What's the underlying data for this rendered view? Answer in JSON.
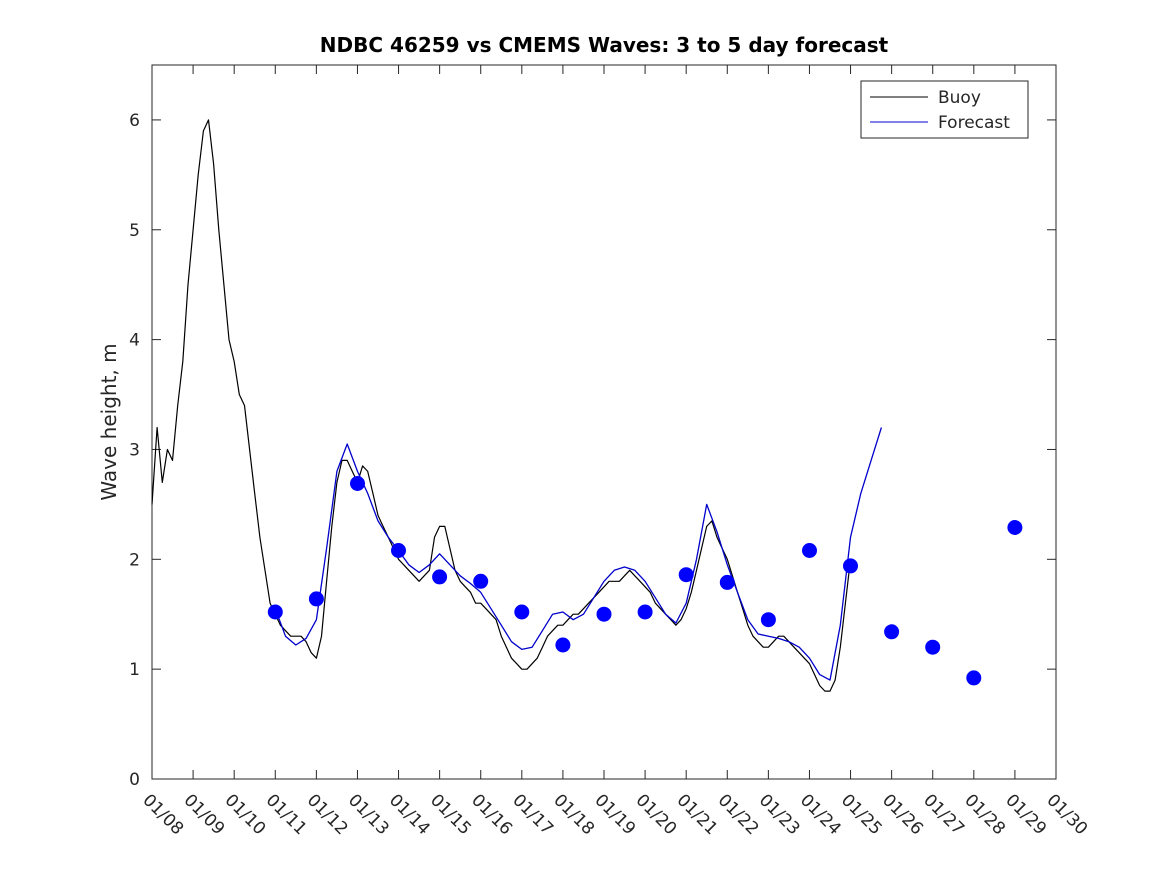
{
  "chart_data": {
    "type": "line",
    "title": "NDBC 46259 vs CMEMS Waves: 3 to 5 day forecast",
    "xlabel": "",
    "ylabel": "Wave height, m",
    "x_unit": "date",
    "xlim": [
      "01/08",
      "01/30"
    ],
    "ylim": [
      0,
      6.5
    ],
    "x_ticks": [
      "01/08",
      "01/09",
      "01/10",
      "01/11",
      "01/12",
      "01/13",
      "01/14",
      "01/15",
      "01/16",
      "01/17",
      "01/18",
      "01/19",
      "01/20",
      "01/21",
      "01/22",
      "01/23",
      "01/24",
      "01/25",
      "01/26",
      "01/27",
      "01/28",
      "01/29",
      "01/30"
    ],
    "y_ticks": [
      0,
      1,
      2,
      3,
      4,
      5,
      6
    ],
    "legend": {
      "position": "top-right",
      "entries": [
        "Buoy",
        "Forecast"
      ]
    },
    "colors": {
      "buoy": "#000000",
      "forecast": "#0000cc",
      "markers": "#0000ff"
    },
    "series": [
      {
        "name": "Buoy",
        "points": [
          [
            "01/08 00:00",
            2.5
          ],
          [
            "01/08 03:00",
            3.2
          ],
          [
            "01/08 06:00",
            2.7
          ],
          [
            "01/08 09:00",
            3.0
          ],
          [
            "01/08 12:00",
            2.9
          ],
          [
            "01/08 15:00",
            3.4
          ],
          [
            "01/08 18:00",
            3.8
          ],
          [
            "01/08 21:00",
            4.5
          ],
          [
            "01/09 00:00",
            5.0
          ],
          [
            "01/09 03:00",
            5.5
          ],
          [
            "01/09 06:00",
            5.9
          ],
          [
            "01/09 09:00",
            6.0
          ],
          [
            "01/09 12:00",
            5.6
          ],
          [
            "01/09 15:00",
            5.0
          ],
          [
            "01/09 18:00",
            4.5
          ],
          [
            "01/09 21:00",
            4.0
          ],
          [
            "01/10 00:00",
            3.8
          ],
          [
            "01/10 03:00",
            3.5
          ],
          [
            "01/10 06:00",
            3.4
          ],
          [
            "01/10 09:00",
            3.0
          ],
          [
            "01/10 12:00",
            2.6
          ],
          [
            "01/10 15:00",
            2.2
          ],
          [
            "01/10 18:00",
            1.9
          ],
          [
            "01/10 21:00",
            1.6
          ],
          [
            "01/11 00:00",
            1.5
          ],
          [
            "01/11 03:00",
            1.4
          ],
          [
            "01/11 06:00",
            1.35
          ],
          [
            "01/11 09:00",
            1.3
          ],
          [
            "01/11 12:00",
            1.3
          ],
          [
            "01/11 15:00",
            1.3
          ],
          [
            "01/11 18:00",
            1.25
          ],
          [
            "01/11 21:00",
            1.15
          ],
          [
            "01/12 00:00",
            1.1
          ],
          [
            "01/12 03:00",
            1.3
          ],
          [
            "01/12 06:00",
            1.8
          ],
          [
            "01/12 09:00",
            2.3
          ],
          [
            "01/12 12:00",
            2.7
          ],
          [
            "01/12 15:00",
            2.9
          ],
          [
            "01/12 18:00",
            2.9
          ],
          [
            "01/12 21:00",
            2.8
          ],
          [
            "01/13 00:00",
            2.7
          ],
          [
            "01/13 03:00",
            2.85
          ],
          [
            "01/13 06:00",
            2.8
          ],
          [
            "01/13 09:00",
            2.6
          ],
          [
            "01/13 12:00",
            2.4
          ],
          [
            "01/13 15:00",
            2.3
          ],
          [
            "01/13 18:00",
            2.2
          ],
          [
            "01/13 21:00",
            2.1
          ],
          [
            "01/14 00:00",
            2.0
          ],
          [
            "01/14 03:00",
            1.95
          ],
          [
            "01/14 06:00",
            1.9
          ],
          [
            "01/14 09:00",
            1.85
          ],
          [
            "01/14 12:00",
            1.8
          ],
          [
            "01/14 15:00",
            1.85
          ],
          [
            "01/14 18:00",
            1.9
          ],
          [
            "01/14 21:00",
            2.2
          ],
          [
            "01/15 00:00",
            2.3
          ],
          [
            "01/15 03:00",
            2.3
          ],
          [
            "01/15 06:00",
            2.1
          ],
          [
            "01/15 09:00",
            1.9
          ],
          [
            "01/15 12:00",
            1.8
          ],
          [
            "01/15 15:00",
            1.75
          ],
          [
            "01/15 18:00",
            1.7
          ],
          [
            "01/15 21:00",
            1.6
          ],
          [
            "01/16 00:00",
            1.6
          ],
          [
            "01/16 03:00",
            1.55
          ],
          [
            "01/16 06:00",
            1.5
          ],
          [
            "01/16 09:00",
            1.45
          ],
          [
            "01/16 12:00",
            1.3
          ],
          [
            "01/16 15:00",
            1.2
          ],
          [
            "01/16 18:00",
            1.1
          ],
          [
            "01/16 21:00",
            1.05
          ],
          [
            "01/17 00:00",
            1.0
          ],
          [
            "01/17 03:00",
            1.0
          ],
          [
            "01/17 06:00",
            1.05
          ],
          [
            "01/17 09:00",
            1.1
          ],
          [
            "01/17 12:00",
            1.2
          ],
          [
            "01/17 15:00",
            1.3
          ],
          [
            "01/17 18:00",
            1.35
          ],
          [
            "01/17 21:00",
            1.4
          ],
          [
            "01/18 00:00",
            1.4
          ],
          [
            "01/18 03:00",
            1.45
          ],
          [
            "01/18 06:00",
            1.5
          ],
          [
            "01/18 09:00",
            1.5
          ],
          [
            "01/18 12:00",
            1.55
          ],
          [
            "01/18 15:00",
            1.6
          ],
          [
            "01/18 18:00",
            1.65
          ],
          [
            "01/18 21:00",
            1.7
          ],
          [
            "01/19 00:00",
            1.75
          ],
          [
            "01/19 03:00",
            1.8
          ],
          [
            "01/19 06:00",
            1.8
          ],
          [
            "01/19 09:00",
            1.8
          ],
          [
            "01/19 12:00",
            1.85
          ],
          [
            "01/19 15:00",
            1.9
          ],
          [
            "01/19 18:00",
            1.85
          ],
          [
            "01/19 21:00",
            1.8
          ],
          [
            "01/20 00:00",
            1.75
          ],
          [
            "01/20 03:00",
            1.7
          ],
          [
            "01/20 06:00",
            1.6
          ],
          [
            "01/20 09:00",
            1.55
          ],
          [
            "01/20 12:00",
            1.5
          ],
          [
            "01/20 15:00",
            1.45
          ],
          [
            "01/20 18:00",
            1.4
          ],
          [
            "01/20 21:00",
            1.45
          ],
          [
            "01/21 00:00",
            1.55
          ],
          [
            "01/21 03:00",
            1.7
          ],
          [
            "01/21 06:00",
            1.9
          ],
          [
            "01/21 09:00",
            2.1
          ],
          [
            "01/21 12:00",
            2.3
          ],
          [
            "01/21 15:00",
            2.35
          ],
          [
            "01/21 18:00",
            2.2
          ],
          [
            "01/21 21:00",
            2.1
          ],
          [
            "01/22 00:00",
            2.0
          ],
          [
            "01/22 03:00",
            1.85
          ],
          [
            "01/22 06:00",
            1.7
          ],
          [
            "01/22 09:00",
            1.55
          ],
          [
            "01/22 12:00",
            1.4
          ],
          [
            "01/22 15:00",
            1.3
          ],
          [
            "01/22 18:00",
            1.25
          ],
          [
            "01/22 21:00",
            1.2
          ],
          [
            "01/23 00:00",
            1.2
          ],
          [
            "01/23 03:00",
            1.25
          ],
          [
            "01/23 06:00",
            1.3
          ],
          [
            "01/23 09:00",
            1.3
          ],
          [
            "01/23 12:00",
            1.25
          ],
          [
            "01/23 15:00",
            1.2
          ],
          [
            "01/23 18:00",
            1.15
          ],
          [
            "01/23 21:00",
            1.1
          ],
          [
            "01/24 00:00",
            1.05
          ],
          [
            "01/24 03:00",
            0.95
          ],
          [
            "01/24 06:00",
            0.85
          ],
          [
            "01/24 09:00",
            0.8
          ],
          [
            "01/24 12:00",
            0.8
          ],
          [
            "01/24 15:00",
            0.9
          ],
          [
            "01/24 18:00",
            1.2
          ],
          [
            "01/24 21:00",
            1.6
          ],
          [
            "01/25 00:00",
            2.0
          ]
        ]
      },
      {
        "name": "Forecast",
        "points": [
          [
            "01/11 00:00",
            1.55
          ],
          [
            "01/11 06:00",
            1.3
          ],
          [
            "01/11 12:00",
            1.22
          ],
          [
            "01/11 18:00",
            1.28
          ],
          [
            "01/12 00:00",
            1.45
          ],
          [
            "01/12 06:00",
            2.1
          ],
          [
            "01/12 12:00",
            2.8
          ],
          [
            "01/12 18:00",
            3.05
          ],
          [
            "01/13 00:00",
            2.8
          ],
          [
            "01/13 06:00",
            2.6
          ],
          [
            "01/13 12:00",
            2.35
          ],
          [
            "01/13 18:00",
            2.2
          ],
          [
            "01/14 00:00",
            2.08
          ],
          [
            "01/14 06:00",
            1.95
          ],
          [
            "01/14 12:00",
            1.88
          ],
          [
            "01/14 18:00",
            1.95
          ],
          [
            "01/15 00:00",
            2.05
          ],
          [
            "01/15 06:00",
            1.95
          ],
          [
            "01/15 12:00",
            1.85
          ],
          [
            "01/15 18:00",
            1.78
          ],
          [
            "01/16 00:00",
            1.7
          ],
          [
            "01/16 06:00",
            1.55
          ],
          [
            "01/16 12:00",
            1.4
          ],
          [
            "01/16 18:00",
            1.25
          ],
          [
            "01/17 00:00",
            1.18
          ],
          [
            "01/17 06:00",
            1.2
          ],
          [
            "01/17 12:00",
            1.35
          ],
          [
            "01/17 18:00",
            1.5
          ],
          [
            "01/18 00:00",
            1.52
          ],
          [
            "01/18 06:00",
            1.45
          ],
          [
            "01/18 12:00",
            1.5
          ],
          [
            "01/18 18:00",
            1.65
          ],
          [
            "01/19 00:00",
            1.8
          ],
          [
            "01/19 06:00",
            1.9
          ],
          [
            "01/19 12:00",
            1.93
          ],
          [
            "01/19 18:00",
            1.9
          ],
          [
            "01/20 00:00",
            1.8
          ],
          [
            "01/20 06:00",
            1.65
          ],
          [
            "01/20 12:00",
            1.5
          ],
          [
            "01/20 18:00",
            1.42
          ],
          [
            "01/21 00:00",
            1.6
          ],
          [
            "01/21 06:00",
            2.0
          ],
          [
            "01/21 12:00",
            2.5
          ],
          [
            "01/21 18:00",
            2.25
          ],
          [
            "01/22 00:00",
            1.95
          ],
          [
            "01/22 06:00",
            1.7
          ],
          [
            "01/22 12:00",
            1.45
          ],
          [
            "01/22 18:00",
            1.32
          ],
          [
            "01/23 00:00",
            1.3
          ],
          [
            "01/23 06:00",
            1.28
          ],
          [
            "01/23 12:00",
            1.25
          ],
          [
            "01/23 18:00",
            1.2
          ],
          [
            "01/24 00:00",
            1.1
          ],
          [
            "01/24 06:00",
            0.95
          ],
          [
            "01/24 12:00",
            0.9
          ],
          [
            "01/24 18:00",
            1.4
          ],
          [
            "01/25 00:00",
            2.2
          ],
          [
            "01/25 06:00",
            2.6
          ],
          [
            "01/25 12:00",
            2.9
          ],
          [
            "01/25 18:00",
            3.2
          ]
        ]
      },
      {
        "name": "",
        "points": [
          [
            "01/11 00:00",
            1.52
          ],
          [
            "01/12 00:00",
            1.64
          ],
          [
            "01/13 00:00",
            2.69
          ],
          [
            "01/14 00:00",
            2.08
          ],
          [
            "01/15 00:00",
            1.84
          ],
          [
            "01/16 00:00",
            1.8
          ],
          [
            "01/17 00:00",
            1.52
          ],
          [
            "01/18 00:00",
            1.22
          ],
          [
            "01/19 00:00",
            1.5
          ],
          [
            "01/20 00:00",
            1.52
          ],
          [
            "01/21 00:00",
            1.86
          ],
          [
            "01/22 00:00",
            1.79
          ],
          [
            "01/23 00:00",
            1.45
          ],
          [
            "01/24 00:00",
            2.08
          ],
          [
            "01/25 00:00",
            1.94
          ],
          [
            "01/26 00:00",
            1.34
          ],
          [
            "01/27 00:00",
            1.2
          ],
          [
            "01/28 00:00",
            0.92
          ],
          [
            "01/29 00:00",
            2.29
          ]
        ]
      }
    ]
  }
}
